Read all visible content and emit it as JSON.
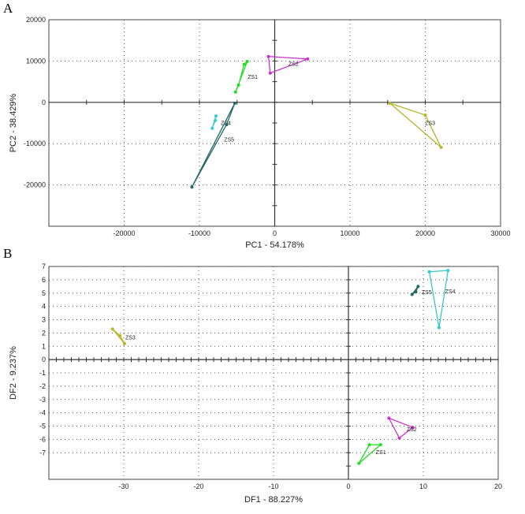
{
  "chart_data": [
    {
      "panel_label": "A",
      "type": "scatter",
      "xlabel": "PC1 - 54.178%",
      "ylabel": "PC2 - 38.429%",
      "xlim": [
        -30000,
        30000
      ],
      "ylim": [
        -30000,
        20000
      ],
      "xticks": [
        -20000,
        -10000,
        0,
        10000,
        20000,
        30000
      ],
      "yticks": [
        -20000,
        -10000,
        0,
        10000,
        20000
      ],
      "grid": true,
      "series": [
        {
          "name": "ZS1",
          "color": "#22dd22",
          "points": [
            [
              -4060,
              9200
            ],
            [
              -3650,
              9900
            ],
            [
              -5200,
              2500
            ],
            [
              -4800,
              4200
            ]
          ]
        },
        {
          "name": "ZS2",
          "color": "#cc33cc",
          "points": [
            [
              -830,
              11100
            ],
            [
              4375,
              10500
            ],
            [
              -600,
              7070
            ]
          ]
        },
        {
          "name": "ZS3",
          "color": "#b5b52a",
          "points": [
            [
              15300,
              -200
            ],
            [
              20000,
              -3100
            ],
            [
              22100,
              -10900
            ]
          ]
        },
        {
          "name": "ZS4",
          "color": "#33cccc",
          "points": [
            [
              -7800,
              -3300
            ],
            [
              -8300,
              -6300
            ],
            [
              -7900,
              -4400
            ]
          ]
        },
        {
          "name": "ZS5",
          "color": "#226666",
          "points": [
            [
              -5300,
              -200
            ],
            [
              -11000,
              -20500
            ],
            [
              -6400,
              -5400
            ]
          ]
        }
      ]
    },
    {
      "panel_label": "B",
      "type": "scatter",
      "xlabel": "DF1 - 88.227%",
      "ylabel": "DF2 - 9.237%",
      "xlim": [
        -40,
        20
      ],
      "ylim": [
        -9,
        7
      ],
      "xticks": [
        -30,
        -20,
        -10,
        0,
        10,
        20
      ],
      "yticks": [
        -7,
        -6,
        -5,
        -4,
        -3,
        -2,
        -1,
        0,
        1,
        2,
        3,
        4,
        5,
        6,
        7
      ],
      "grid": true,
      "series": [
        {
          "name": "ZS1",
          "color": "#22dd22",
          "points": [
            [
              2.8,
              -6.4
            ],
            [
              4.3,
              -6.4
            ],
            [
              1.4,
              -7.8
            ]
          ]
        },
        {
          "name": "ZS2",
          "color": "#cc33cc",
          "points": [
            [
              5.4,
              -4.4
            ],
            [
              8.6,
              -5.1
            ],
            [
              6.8,
              -5.9
            ]
          ]
        },
        {
          "name": "ZS3",
          "color": "#b5b52a",
          "points": [
            [
              -31.5,
              2.3
            ],
            [
              -29.9,
              1.2
            ],
            [
              -30.5,
              1.8
            ]
          ]
        },
        {
          "name": "ZS4",
          "color": "#33cccc",
          "points": [
            [
              10.8,
              6.6
            ],
            [
              13.3,
              6.7
            ],
            [
              12.1,
              2.4
            ]
          ]
        },
        {
          "name": "ZS5",
          "color": "#226666",
          "points": [
            [
              8.5,
              4.9
            ],
            [
              9.3,
              5.5
            ],
            [
              9.0,
              5.1
            ]
          ]
        }
      ]
    }
  ]
}
